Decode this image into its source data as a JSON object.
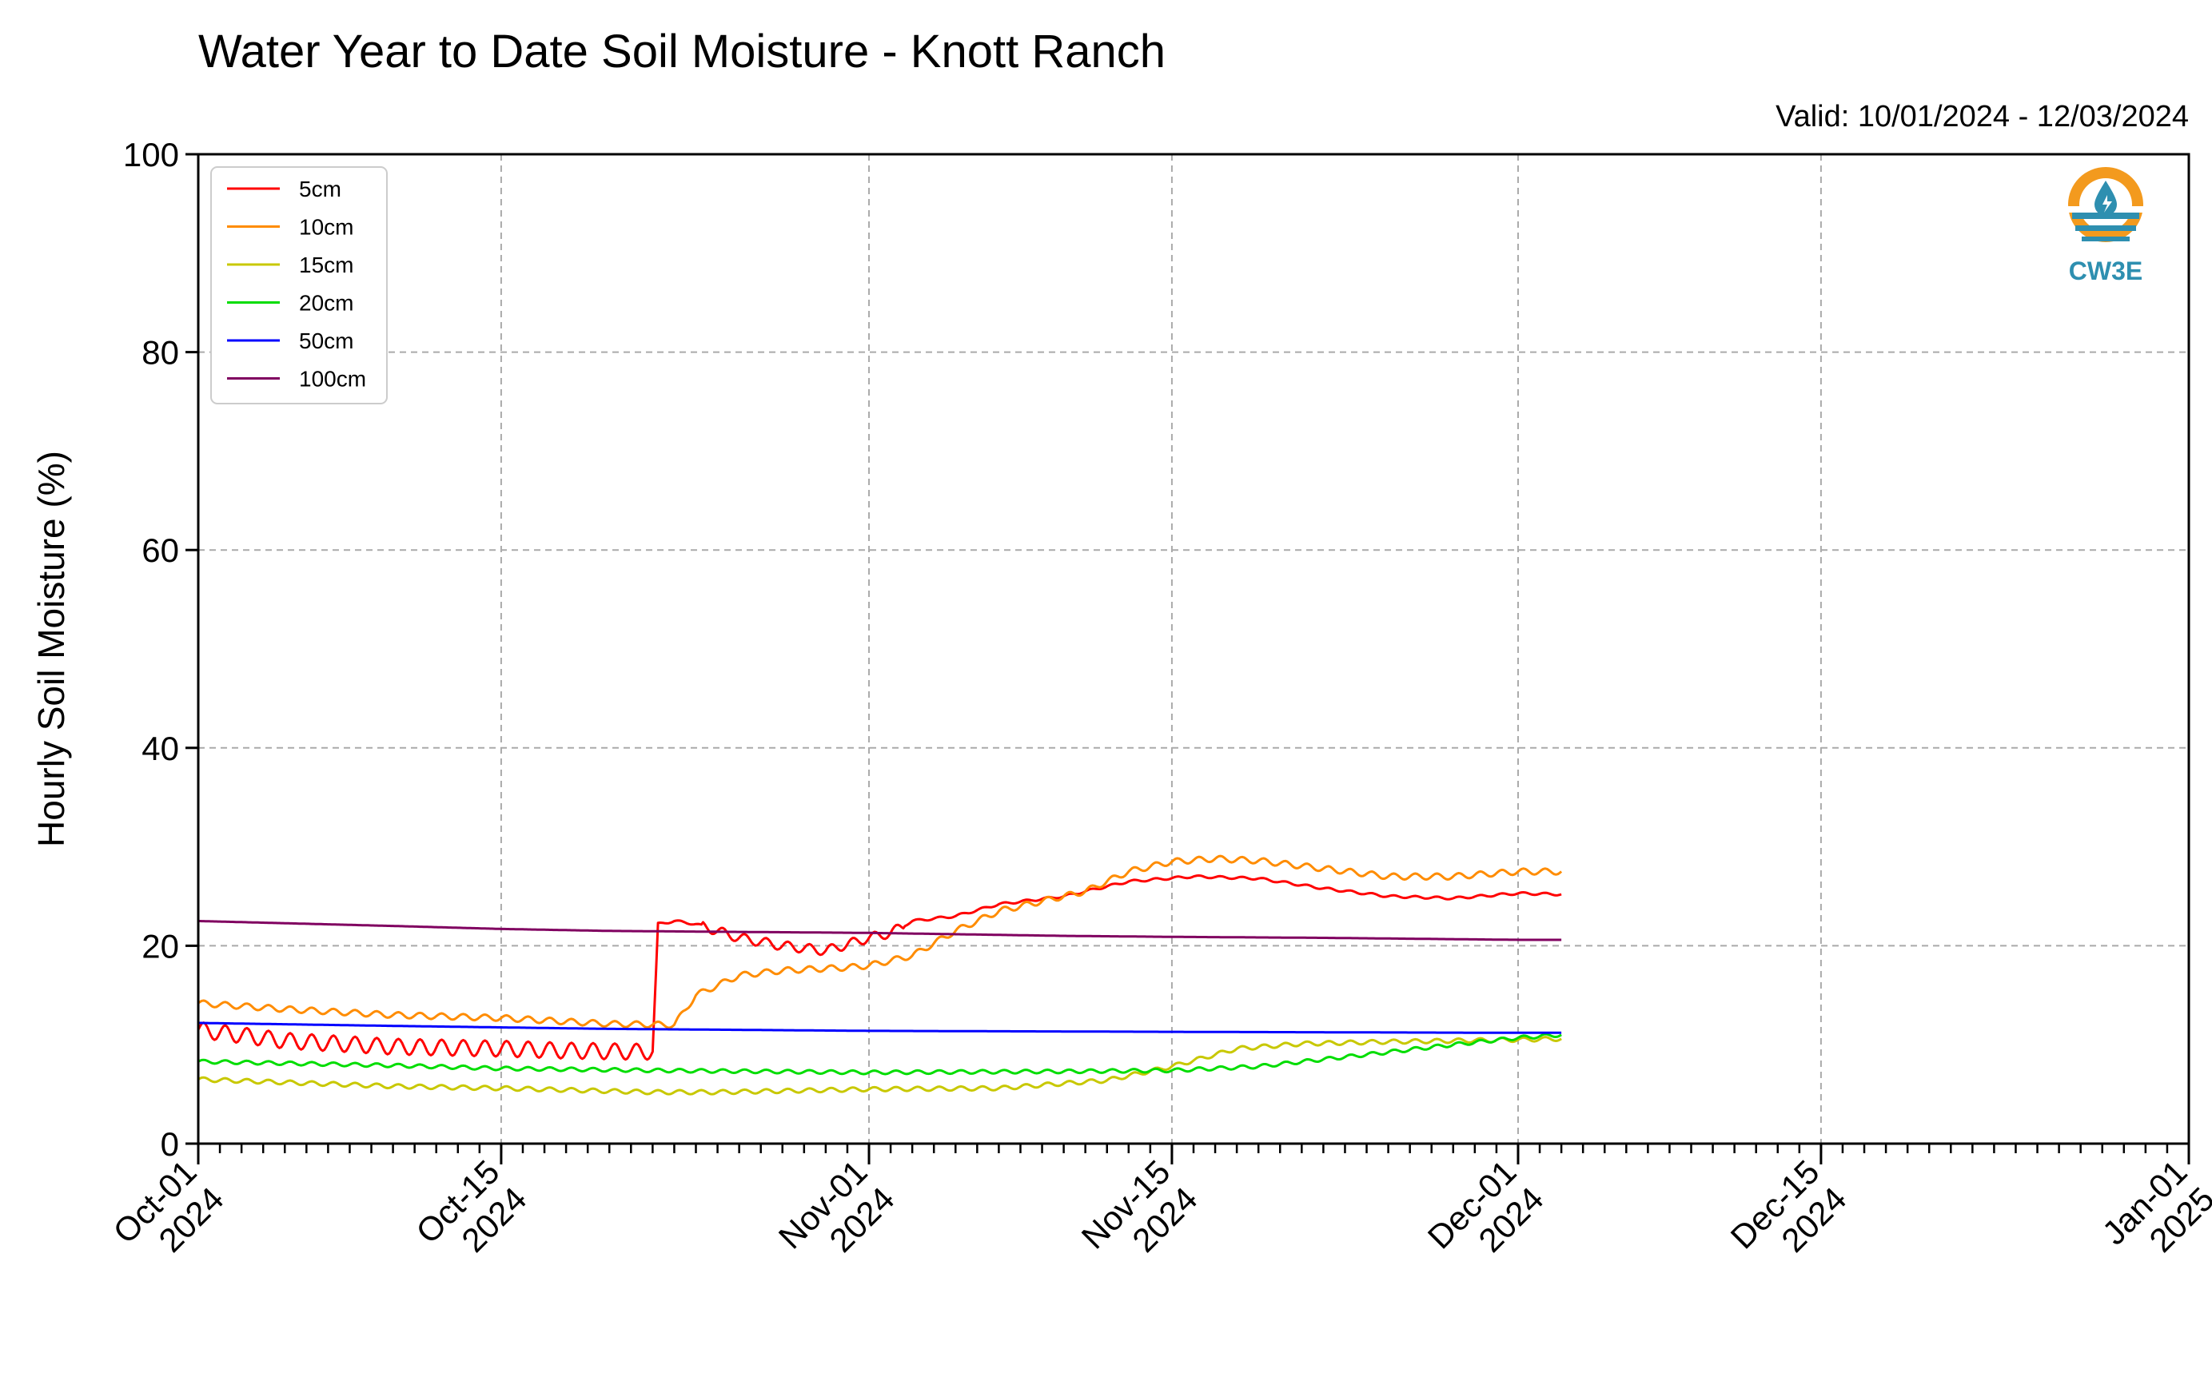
{
  "chart_data": {
    "type": "line",
    "title": "Water Year to Date Soil Moisture - Knott Ranch",
    "subtitle": "Valid: 10/01/2024 - 12/03/2024",
    "xlabel": "",
    "ylabel": "Hourly Soil Moisture (%)",
    "xlim": [
      "2024-10-01",
      "2025-01-01"
    ],
    "ylim": [
      0,
      100
    ],
    "grid": true,
    "legend_position": "top-left",
    "x_ticks": [
      {
        "date": "2024-10-01",
        "line1": "Oct-01",
        "line2": "2024"
      },
      {
        "date": "2024-10-15",
        "line1": "Oct-15",
        "line2": "2024"
      },
      {
        "date": "2024-11-01",
        "line1": "Nov-01",
        "line2": "2024"
      },
      {
        "date": "2024-11-15",
        "line1": "Nov-15",
        "line2": "2024"
      },
      {
        "date": "2024-12-01",
        "line1": "Dec-01",
        "line2": "2024"
      },
      {
        "date": "2024-12-15",
        "line1": "Dec-15",
        "line2": "2024"
      },
      {
        "date": "2025-01-01",
        "line1": "Jan-01",
        "line2": "2025"
      }
    ],
    "y_ticks": [
      0,
      20,
      40,
      60,
      80,
      100
    ],
    "series": [
      {
        "name": "5cm",
        "color": "#ff0000",
        "x": [
          "2024-10-01",
          "2024-10-05",
          "2024-10-10",
          "2024-10-15",
          "2024-10-18",
          "2024-10-21",
          "2024-10-22",
          "2024-10-22T06",
          "2024-10-23",
          "2024-10-24",
          "2024-10-26",
          "2024-10-28",
          "2024-10-30",
          "2024-11-01",
          "2024-11-02",
          "2024-11-03",
          "2024-11-05",
          "2024-11-07",
          "2024-11-10",
          "2024-11-13",
          "2024-11-16",
          "2024-11-19",
          "2024-11-22",
          "2024-11-25",
          "2024-11-28",
          "2024-12-01",
          "2024-12-03"
        ],
        "y": [
          11.5,
          10.4,
          9.8,
          9.6,
          9.4,
          9.3,
          9.3,
          22.2,
          22.5,
          22.2,
          20.8,
          20.0,
          19.5,
          20.8,
          21.3,
          22.5,
          23.0,
          24.2,
          25.0,
          26.5,
          27.0,
          26.8,
          25.8,
          25.0,
          24.8,
          25.3,
          25.2
        ],
        "amplitude": 0.8
      },
      {
        "name": "10cm",
        "color": "#ff8c00",
        "x": [
          "2024-10-01",
          "2024-10-05",
          "2024-10-10",
          "2024-10-15",
          "2024-10-20",
          "2024-10-23",
          "2024-10-24",
          "2024-10-26",
          "2024-10-28",
          "2024-10-31",
          "2024-11-01",
          "2024-11-03",
          "2024-11-05",
          "2024-11-07",
          "2024-11-09",
          "2024-11-11",
          "2024-11-13",
          "2024-11-15",
          "2024-11-17",
          "2024-11-19",
          "2024-11-22",
          "2024-11-25",
          "2024-11-28",
          "2024-12-01",
          "2024-12-03"
        ],
        "y": [
          14.2,
          13.6,
          13.0,
          12.7,
          12.1,
          12.0,
          15.0,
          17.0,
          17.5,
          17.8,
          18.0,
          19.0,
          21.5,
          23.5,
          24.5,
          25.5,
          27.5,
          28.5,
          28.8,
          28.6,
          27.8,
          27.0,
          27.0,
          27.5,
          27.5
        ],
        "amplitude": 0.5
      },
      {
        "name": "15cm",
        "color": "#c8c800",
        "x": [
          "2024-10-01",
          "2024-10-10",
          "2024-10-15",
          "2024-10-22",
          "2024-10-25",
          "2024-11-01",
          "2024-11-07",
          "2024-11-12",
          "2024-11-15",
          "2024-11-18",
          "2024-11-21",
          "2024-11-25",
          "2024-12-01",
          "2024-12-03"
        ],
        "y": [
          6.5,
          5.8,
          5.6,
          5.2,
          5.2,
          5.5,
          5.6,
          6.4,
          7.8,
          9.6,
          10.1,
          10.3,
          10.5,
          10.6
        ],
        "amplitude": 0.35
      },
      {
        "name": "20cm",
        "color": "#00dd00",
        "x": [
          "2024-10-01",
          "2024-10-10",
          "2024-10-15",
          "2024-10-22",
          "2024-11-01",
          "2024-11-10",
          "2024-11-15",
          "2024-11-19",
          "2024-11-24",
          "2024-11-28",
          "2024-12-01",
          "2024-12-03"
        ],
        "y": [
          8.3,
          7.9,
          7.6,
          7.4,
          7.2,
          7.3,
          7.4,
          7.8,
          9.0,
          10.0,
          10.7,
          11.0
        ],
        "amplitude": 0.3
      },
      {
        "name": "50cm",
        "color": "#0000ff",
        "x": [
          "2024-10-01",
          "2024-10-10",
          "2024-10-20",
          "2024-11-01",
          "2024-11-15",
          "2024-12-01",
          "2024-12-03"
        ],
        "y": [
          12.2,
          11.9,
          11.6,
          11.4,
          11.3,
          11.2,
          11.2
        ],
        "amplitude": 0
      },
      {
        "name": "100cm",
        "color": "#800060",
        "x": [
          "2024-10-01",
          "2024-10-10",
          "2024-10-15",
          "2024-10-20",
          "2024-11-01",
          "2024-11-10",
          "2024-11-15",
          "2024-11-22",
          "2024-12-01",
          "2024-12-03"
        ],
        "y": [
          22.5,
          22.0,
          21.7,
          21.5,
          21.3,
          21.0,
          20.9,
          20.8,
          20.6,
          20.6
        ],
        "amplitude": 0
      }
    ]
  },
  "logo": {
    "text": "CW3E",
    "icon": "water-drop-logo-icon",
    "colors": [
      "#f39a1e",
      "#2e8fb0"
    ]
  }
}
